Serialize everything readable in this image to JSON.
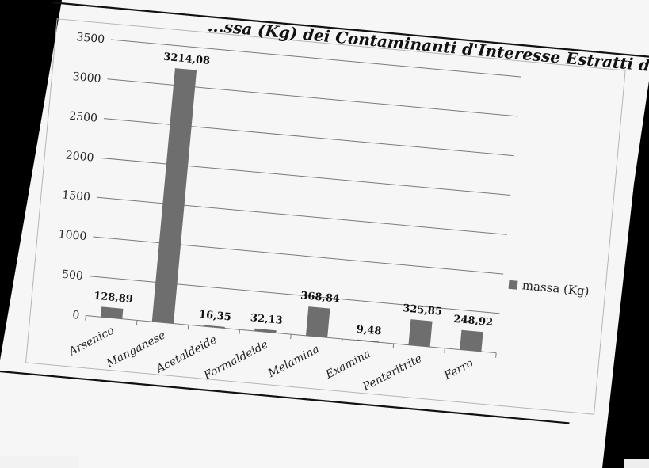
{
  "chart_data": {
    "type": "bar",
    "title": "...ssa (Kg) dei Contaminanti d'Interesse Estratti dai Pozzi",
    "categories": [
      "Arsenico",
      "Manganese",
      "Acetaldeide",
      "Formaldeide",
      "Melamina",
      "Examina",
      "Penteritrite",
      "Ferro"
    ],
    "value_labels": [
      "128,89",
      "3214,08",
      "16,35",
      "32,13",
      "368,84",
      "9,48",
      "325,85",
      "248,92"
    ],
    "series": [
      {
        "name": "massa (Kg)",
        "values": [
          128.89,
          3214.08,
          16.35,
          32.13,
          368.84,
          9.48,
          325.85,
          248.92
        ]
      }
    ],
    "y_ticks": [
      "0",
      "500",
      "1000",
      "1500",
      "2000",
      "2500",
      "3000",
      "3500"
    ],
    "ylim": [
      0,
      3500
    ],
    "grid": true,
    "legend_position": "right",
    "colors": {
      "bar": "#6e6e6e",
      "paper": "#f6f6f6",
      "background": "#000000",
      "grid": "#7a7a7a"
    }
  }
}
